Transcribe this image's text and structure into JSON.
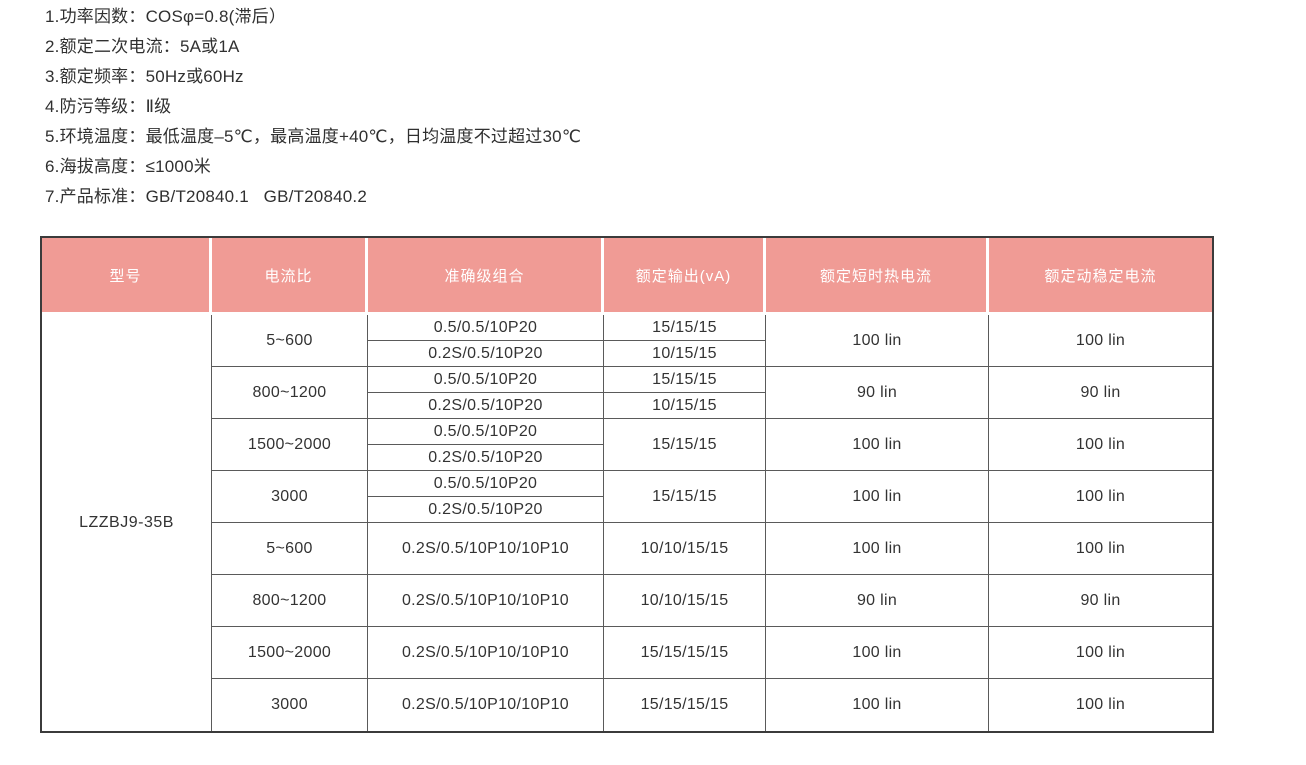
{
  "specs": [
    "1.功率因数：COSφ=0.8(滞后）",
    "2.额定二次电流：5A或1A",
    "3.额定频率：50Hz或60Hz",
    "4.防污等级：Ⅱ级",
    "5.环境温度：最低温度–5℃，最高温度+40℃，日均温度不过超过30℃",
    "6.海拔高度：≤1000米",
    "7.产品标准：GB/T20840.1   GB/T20840.2"
  ],
  "table": {
    "headers": {
      "model": "型号",
      "ratio": "电流比",
      "accuracy": "准确级组合",
      "output": "额定输出(vA)",
      "thermal": "额定短时热电流",
      "dynamic": "额定动稳定电流"
    },
    "model": "LZZBJ9-35B",
    "groups": [
      {
        "ratio": "5~600",
        "rows": [
          {
            "acc": "0.5/0.5/10P20",
            "out": "15/15/15"
          },
          {
            "acc": "0.2S/0.5/10P20",
            "out": "10/15/15"
          }
        ],
        "thermal": "100 lin",
        "dynamic": "100 lin"
      },
      {
        "ratio": "800~1200",
        "rows": [
          {
            "acc": "0.5/0.5/10P20",
            "out": "15/15/15"
          },
          {
            "acc": "0.2S/0.5/10P20",
            "out": "10/15/15"
          }
        ],
        "thermal": "90 lin",
        "dynamic": "90 lin"
      },
      {
        "ratio": "1500~2000",
        "rows": [
          {
            "acc": "0.5/0.5/10P20"
          },
          {
            "acc": "0.2S/0.5/10P20"
          }
        ],
        "out": "15/15/15",
        "thermal": "100 lin",
        "dynamic": "100 lin"
      },
      {
        "ratio": "3000",
        "rows": [
          {
            "acc": "0.5/0.5/10P20"
          },
          {
            "acc": "0.2S/0.5/10P20"
          }
        ],
        "out": "15/15/15",
        "thermal": "100 lin",
        "dynamic": "100 lin"
      },
      {
        "ratio": "5~600",
        "acc": "0.2S/0.5/10P10/10P10",
        "out": "10/10/15/15",
        "thermal": "100 lin",
        "dynamic": "100 lin"
      },
      {
        "ratio": "800~1200",
        "acc": "0.2S/0.5/10P10/10P10",
        "out": "10/10/15/15",
        "thermal": "90 lin",
        "dynamic": "90 lin"
      },
      {
        "ratio": "1500~2000",
        "acc": "0.2S/0.5/10P10/10P10",
        "out": "15/15/15/15",
        "thermal": "100 lin",
        "dynamic": "100 lin"
      },
      {
        "ratio": "3000",
        "acc": "0.2S/0.5/10P10/10P10",
        "out": "15/15/15/15",
        "thermal": "100 lin",
        "dynamic": "100 lin"
      }
    ],
    "colors": {
      "header_bg": "#f09b95",
      "header_text": "#ffffff",
      "outer_border": "#3b3b3b",
      "inner_border": "#5a5a5a",
      "body_text": "#333333"
    }
  }
}
